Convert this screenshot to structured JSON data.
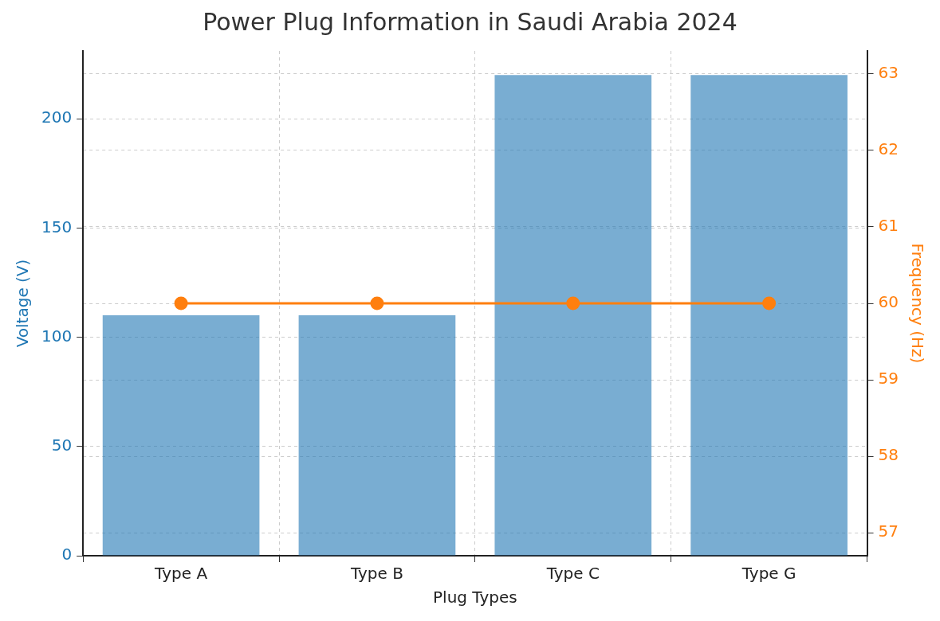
{
  "chart_data": {
    "type": "bar",
    "title": "Power Plug Information in Saudi Arabia 2024",
    "x_label": "Plug Types",
    "categories": [
      "Type A",
      "Type B",
      "Type C",
      "Type G"
    ],
    "series": [
      {
        "name": "Voltage (V)",
        "type": "bar",
        "color": "#1f77b4",
        "values": [
          110,
          110,
          220,
          220
        ]
      },
      {
        "name": "Frequency (Hz)",
        "type": "line",
        "color": "#ff7f0e",
        "marker": "o",
        "line_style": "solid",
        "axis": "y2",
        "values": [
          60,
          60,
          60,
          60
        ]
      }
    ],
    "ylim": [
      0,
      231
    ],
    "yticks": [
      0,
      50,
      100,
      150,
      200
    ],
    "y2lim": [
      56.7,
      63.3
    ],
    "y2ticks": [
      57,
      58,
      59,
      60,
      61,
      62,
      63
    ],
    "grid": true
  }
}
